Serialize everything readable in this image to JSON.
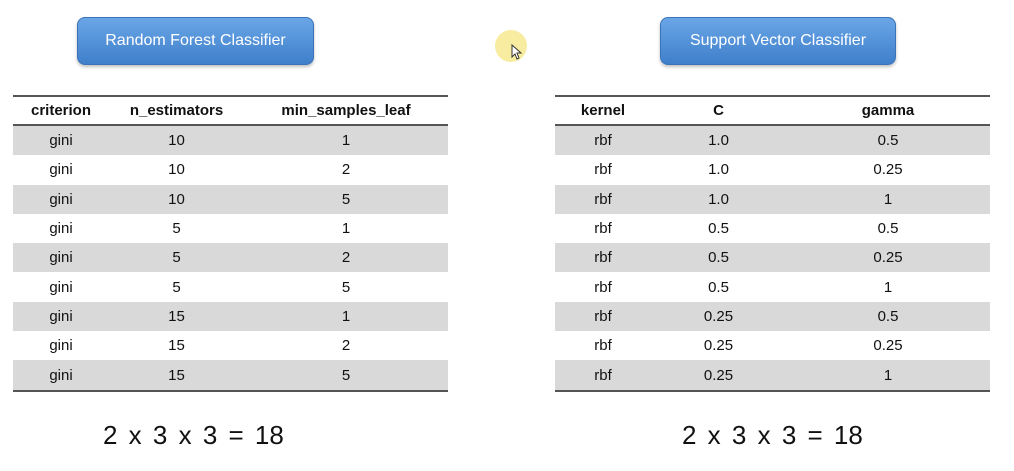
{
  "left_panel": {
    "button_label": "Random Forest Classifier",
    "headers": [
      "criterion",
      "n_estimators",
      "min_samples_leaf"
    ],
    "rows": [
      [
        "gini",
        "10",
        "1"
      ],
      [
        "gini",
        "10",
        "2"
      ],
      [
        "gini",
        "10",
        "5"
      ],
      [
        "gini",
        "5",
        "1"
      ],
      [
        "gini",
        "5",
        "2"
      ],
      [
        "gini",
        "5",
        "5"
      ],
      [
        "gini",
        "15",
        "1"
      ],
      [
        "gini",
        "15",
        "2"
      ],
      [
        "gini",
        "15",
        "5"
      ]
    ],
    "formula": "2 x 3 x 3 = 18"
  },
  "right_panel": {
    "button_label": "Support Vector Classifier",
    "headers": [
      "kernel",
      "C",
      "gamma"
    ],
    "rows": [
      [
        "rbf",
        "1.0",
        "0.5"
      ],
      [
        "rbf",
        "1.0",
        "0.25"
      ],
      [
        "rbf",
        "1.0",
        "1"
      ],
      [
        "rbf",
        "0.5",
        "0.5"
      ],
      [
        "rbf",
        "0.5",
        "0.25"
      ],
      [
        "rbf",
        "0.5",
        "1"
      ],
      [
        "rbf",
        "0.25",
        "0.5"
      ],
      [
        "rbf",
        "0.25",
        "0.25"
      ],
      [
        "rbf",
        "0.25",
        "1"
      ]
    ],
    "formula": "2 x 3 x 3 = 18"
  },
  "colors": {
    "button_fill": "#4f8fd8",
    "row_shade": "#d9d9d9",
    "cursor_highlight": "#f7eca0"
  },
  "cursor": {
    "icon": "mouse-pointer-icon"
  }
}
